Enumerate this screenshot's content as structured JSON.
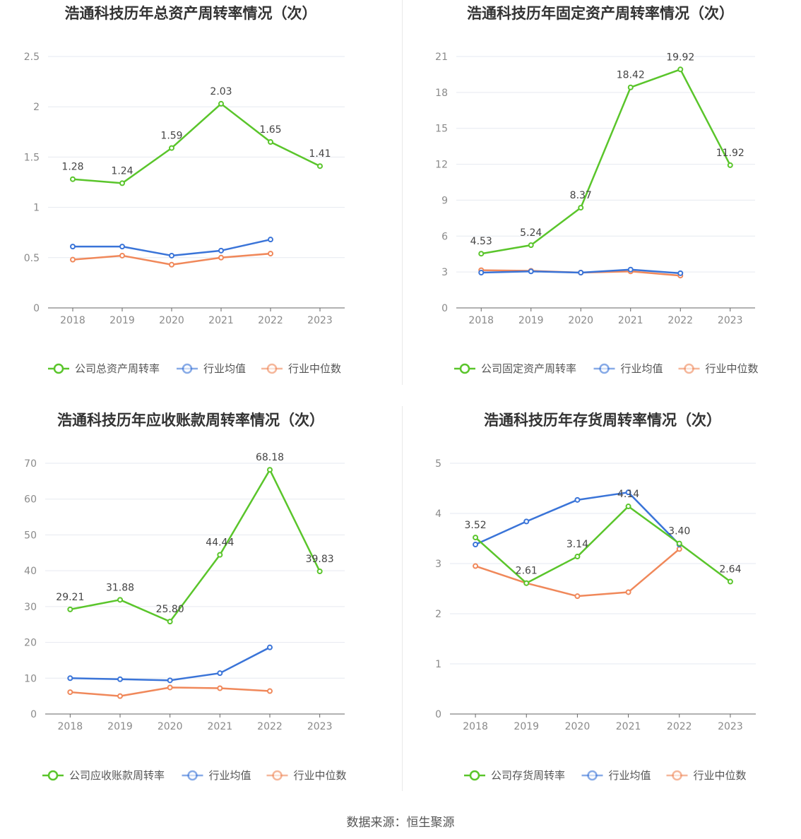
{
  "colors": {
    "company": "#5ac52b",
    "mean": "#3a74d8",
    "median": "#f0885a",
    "grid": "#e6e9f0",
    "axis": "#666666"
  },
  "source_text": "数据来源：恒生聚源",
  "chart_data": [
    {
      "type": "line",
      "title": "浩通科技历年总资产周转率情况（次）",
      "categories": [
        "2018",
        "2019",
        "2020",
        "2021",
        "2022",
        "2023"
      ],
      "ylim": [
        0,
        2.5
      ],
      "yticks": [
        "0",
        "0.5",
        "1",
        "1.5",
        "2",
        "2.5"
      ],
      "legend_position": "bottom",
      "series": [
        {
          "name": "公司总资产周转率",
          "role": "company",
          "values": [
            1.28,
            1.24,
            1.59,
            2.03,
            1.65,
            1.41
          ],
          "labels": [
            "1.28",
            "1.24",
            "1.59",
            "2.03",
            "1.65",
            "1.41"
          ]
        },
        {
          "name": "行业均值",
          "role": "mean",
          "values": [
            0.61,
            0.61,
            0.52,
            0.57,
            0.68,
            null
          ]
        },
        {
          "name": "行业中位数",
          "role": "median",
          "values": [
            0.48,
            0.52,
            0.43,
            0.5,
            0.54,
            null
          ]
        }
      ]
    },
    {
      "type": "line",
      "title": "浩通科技历年固定资产周转率情况（次）",
      "categories": [
        "2018",
        "2019",
        "2020",
        "2021",
        "2022",
        "2023"
      ],
      "ylim": [
        0,
        21
      ],
      "yticks": [
        "0",
        "3",
        "6",
        "9",
        "12",
        "15",
        "18",
        "21"
      ],
      "legend_position": "bottom",
      "series": [
        {
          "name": "公司固定资产周转率",
          "role": "company",
          "values": [
            4.53,
            5.24,
            8.37,
            18.42,
            19.92,
            11.92
          ],
          "labels": [
            "4.53",
            "5.24",
            "8.37",
            "18.42",
            "19.92",
            "11.92"
          ]
        },
        {
          "name": "行业均值",
          "role": "mean",
          "values": [
            2.95,
            3.05,
            2.95,
            3.2,
            2.9,
            null
          ]
        },
        {
          "name": "行业中位数",
          "role": "median",
          "values": [
            3.15,
            3.1,
            2.95,
            3.05,
            2.7,
            null
          ]
        }
      ]
    },
    {
      "type": "line",
      "title": "浩通科技历年应收账款周转率情况（次）",
      "categories": [
        "2018",
        "2019",
        "2020",
        "2021",
        "2022",
        "2023"
      ],
      "ylim": [
        0,
        70
      ],
      "yticks": [
        "0",
        "10",
        "20",
        "30",
        "40",
        "50",
        "60",
        "70"
      ],
      "legend_position": "bottom",
      "series": [
        {
          "name": "公司应收账款周转率",
          "role": "company",
          "values": [
            29.21,
            31.88,
            25.8,
            44.44,
            68.18,
            39.83
          ],
          "labels": [
            "29.21",
            "31.88",
            "25.80",
            "44.44",
            "68.18",
            "39.83"
          ]
        },
        {
          "name": "行业均值",
          "role": "mean",
          "values": [
            10.0,
            9.7,
            9.4,
            11.4,
            18.6,
            null
          ]
        },
        {
          "name": "行业中位数",
          "role": "median",
          "values": [
            6.1,
            5.0,
            7.4,
            7.2,
            6.4,
            null
          ]
        }
      ]
    },
    {
      "type": "line",
      "title": "浩通科技历年存货周转率情况（次）",
      "categories": [
        "2018",
        "2019",
        "2020",
        "2021",
        "2022",
        "2023"
      ],
      "ylim": [
        0,
        5
      ],
      "yticks": [
        "0",
        "1",
        "2",
        "3",
        "4",
        "5"
      ],
      "legend_position": "bottom",
      "series": [
        {
          "name": "公司存货周转率",
          "role": "company",
          "values": [
            3.52,
            2.61,
            3.14,
            4.14,
            3.4,
            2.64
          ],
          "labels": [
            "3.52",
            "2.61",
            "3.14",
            "4.14",
            "3.40",
            "2.64"
          ]
        },
        {
          "name": "行业均值",
          "role": "mean",
          "values": [
            3.38,
            3.84,
            4.27,
            4.42,
            3.38,
            null
          ]
        },
        {
          "name": "行业中位数",
          "role": "median",
          "values": [
            2.95,
            2.61,
            2.35,
            2.43,
            3.29,
            null
          ]
        }
      ]
    }
  ]
}
